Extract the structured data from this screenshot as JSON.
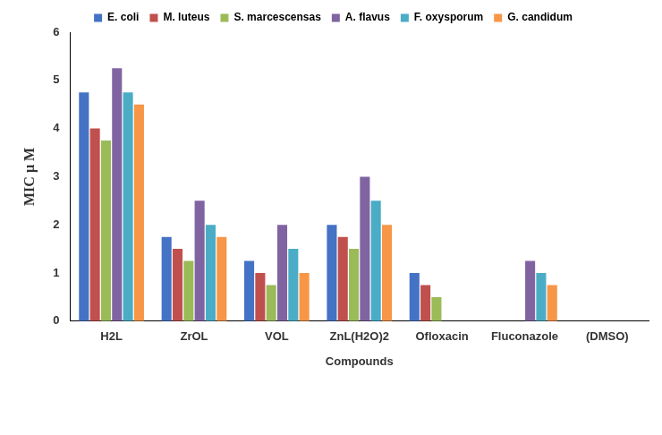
{
  "chart_data": {
    "type": "bar",
    "categories": [
      "H2L",
      "ZrOL",
      "VOL",
      "ZnL(H2O)2",
      "Ofloxacin",
      "Fluconazole",
      "(DMSO)"
    ],
    "series": [
      {
        "name": "E. coli",
        "color": "#4472c4",
        "values": [
          4.75,
          1.75,
          1.25,
          2,
          1,
          null,
          null
        ]
      },
      {
        "name": "M. luteus",
        "color": "#c0504d",
        "values": [
          4,
          1.5,
          1,
          1.75,
          0.75,
          null,
          null
        ]
      },
      {
        "name": "S. marcescensas",
        "color": "#9bbb59",
        "values": [
          3.75,
          1.25,
          0.75,
          1.5,
          0.5,
          null,
          null
        ]
      },
      {
        "name": "A. flavus",
        "color": "#8064a2",
        "values": [
          5.25,
          2.5,
          2,
          3,
          null,
          1.25,
          null
        ]
      },
      {
        "name": "F. oxysporum",
        "color": "#4bacc6",
        "values": [
          4.75,
          2,
          1.5,
          2.5,
          null,
          1,
          null
        ]
      },
      {
        "name": "G. candidum",
        "color": "#f79646",
        "values": [
          4.5,
          1.75,
          1,
          2,
          null,
          0.75,
          null
        ]
      }
    ],
    "x_label": "Compounds",
    "y_label": "MIC µ M",
    "ylim": [
      0,
      6
    ],
    "yticks": [
      0,
      1,
      2,
      3,
      4,
      5,
      6
    ],
    "grid": false,
    "legend": "top"
  }
}
